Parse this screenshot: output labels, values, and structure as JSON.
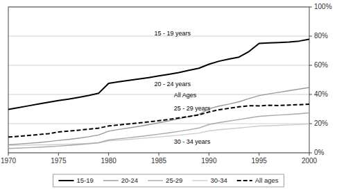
{
  "chart_data": {
    "type": "line",
    "x": [
      1970,
      1971,
      1972,
      1973,
      1974,
      1975,
      1976,
      1977,
      1978,
      1979,
      1980,
      1981,
      1982,
      1983,
      1984,
      1985,
      1986,
      1987,
      1988,
      1989,
      1990,
      1991,
      1992,
      1993,
      1994,
      1995,
      1996,
      1997,
      1998,
      1999,
      2000
    ],
    "series": [
      {
        "name": "15-19",
        "color": "#000000",
        "line_style": "solid",
        "values": [
          0.298,
          0.31,
          0.322,
          0.334,
          0.346,
          0.358,
          0.368,
          0.38,
          0.393,
          0.408,
          0.476,
          0.487,
          0.496,
          0.506,
          0.516,
          0.527,
          0.538,
          0.55,
          0.565,
          0.58,
          0.607,
          0.628,
          0.643,
          0.656,
          0.695,
          0.75,
          0.753,
          0.756,
          0.76,
          0.766,
          0.779
        ]
      },
      {
        "name": "20-24",
        "color": "#999999",
        "line_style": "solid",
        "values": [
          0.055,
          0.06,
          0.065,
          0.07,
          0.077,
          0.085,
          0.092,
          0.1,
          0.11,
          0.122,
          0.148,
          0.16,
          0.17,
          0.181,
          0.193,
          0.206,
          0.219,
          0.233,
          0.248,
          0.263,
          0.302,
          0.32,
          0.334,
          0.35,
          0.372,
          0.392,
          0.404,
          0.415,
          0.426,
          0.437,
          0.448
        ]
      },
      {
        "name": "25-29",
        "color": "#aaaaaa",
        "line_style": "solid",
        "values": [
          0.03,
          0.032,
          0.035,
          0.038,
          0.042,
          0.046,
          0.051,
          0.056,
          0.062,
          0.069,
          0.088,
          0.096,
          0.103,
          0.111,
          0.119,
          0.128,
          0.137,
          0.147,
          0.158,
          0.17,
          0.194,
          0.207,
          0.218,
          0.228,
          0.239,
          0.25,
          0.255,
          0.259,
          0.263,
          0.268,
          0.274
        ]
      },
      {
        "name": "30-34",
        "color": "#cccccc",
        "line_style": "solid",
        "values": [
          0.052,
          0.052,
          0.053,
          0.054,
          0.055,
          0.057,
          0.059,
          0.062,
          0.065,
          0.068,
          0.082,
          0.087,
          0.092,
          0.097,
          0.103,
          0.109,
          0.115,
          0.121,
          0.128,
          0.135,
          0.15,
          0.158,
          0.164,
          0.17,
          0.177,
          0.183,
          0.186,
          0.188,
          0.191,
          0.194,
          0.197
        ]
      },
      {
        "name": "All ages",
        "color": "#000000",
        "line_style": "dashed",
        "values": [
          0.108,
          0.113,
          0.119,
          0.125,
          0.131,
          0.143,
          0.149,
          0.155,
          0.162,
          0.169,
          0.184,
          0.191,
          0.198,
          0.205,
          0.212,
          0.22,
          0.229,
          0.239,
          0.249,
          0.26,
          0.28,
          0.295,
          0.305,
          0.315,
          0.323,
          0.322,
          0.326,
          0.324,
          0.327,
          0.33,
          0.333
        ]
      }
    ],
    "xlim": [
      1970,
      2000
    ],
    "xticks": [
      1970,
      1975,
      1980,
      1985,
      1990,
      1995,
      2000
    ],
    "ylim": [
      0.0,
      1.0
    ],
    "yticks": [
      {
        "value": 0.0,
        "label": "0%"
      },
      {
        "value": 0.2,
        "label": "20%"
      },
      {
        "value": 0.4,
        "label": "40%"
      },
      {
        "value": 0.6,
        "label": "60%"
      },
      {
        "value": 0.8,
        "label": "80%"
      },
      {
        "value": 1.0,
        "label": "100%"
      }
    ],
    "annotations": [
      "15 - 19 years",
      "20 - 24 years",
      "All Ages",
      "25 - 29 years",
      "30 - 34 years"
    ],
    "grid": true,
    "legend": "bottom"
  }
}
